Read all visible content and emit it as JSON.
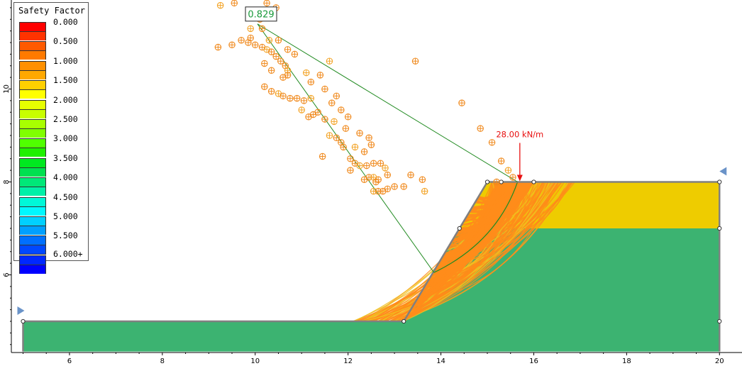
{
  "legend": {
    "title": "Safety Factor",
    "entries": [
      {
        "label": "0.000",
        "color": "#ff0000",
        "color2": "#ff3300"
      },
      {
        "label": "0.500",
        "color": "#ff5a00",
        "color2": "#ff7a00"
      },
      {
        "label": "1.000",
        "color": "#ff9000",
        "color2": "#ffa800"
      },
      {
        "label": "1.500",
        "color": "#ffd000",
        "color2": "#ffff00"
      },
      {
        "label": "2.000",
        "color": "#e6ff00",
        "color2": "#c8ff00"
      },
      {
        "label": "2.500",
        "color": "#a8ff00",
        "color2": "#80ff00"
      },
      {
        "label": "3.000",
        "color": "#50ff00",
        "color2": "#20f000"
      },
      {
        "label": "3.500",
        "color": "#00e820",
        "color2": "#00e050"
      },
      {
        "label": "4.000",
        "color": "#00e878",
        "color2": "#00f0a8"
      },
      {
        "label": "4.500",
        "color": "#00f8d8",
        "color2": "#00f8ff"
      },
      {
        "label": "5.000",
        "color": "#00d0ff",
        "color2": "#00a0ff"
      },
      {
        "label": "5.500",
        "color": "#0070ff",
        "color2": "#0048ff"
      },
      {
        "label": "",
        "color": "#0028ff",
        "color2": "#0000ff"
      }
    ],
    "last_label": "6.000+"
  },
  "min_safety_factor": "0.829",
  "load_label": "28.00 kN/m",
  "axes": {
    "x_ticks": [
      "6",
      "8",
      "10",
      "12",
      "14",
      "16",
      "18",
      "20"
    ],
    "y_ticks": [
      "6",
      "8",
      "10"
    ]
  },
  "colors": {
    "upper_layer": "#eecc00",
    "lower_layer": "#3cb371",
    "slip_orange": "#ff8c1a",
    "slip_yellow": "#f0c020",
    "center_marker": "#f08a1e",
    "radius_line": "#228b22",
    "load_arrow": "#e81010",
    "boundary": "#808080"
  },
  "chart_data": {
    "type": "scatter",
    "title": "",
    "xlabel": "",
    "ylabel": "",
    "xlim": [
      4.9,
      20.5
    ],
    "ylim": [
      4.35,
      11.85
    ],
    "min_factor_center": [
      10.05,
      11.4
    ],
    "min_factor_value": 0.829,
    "slope_profile": [
      [
        5.0,
        5.0
      ],
      [
        13.2,
        5.0
      ],
      [
        15.0,
        8.0
      ],
      [
        20.0,
        8.0
      ]
    ],
    "layer_interface_y": 7.0,
    "load": {
      "x": 15.7,
      "y": 8.0,
      "magnitude": "28.00 kN/m"
    },
    "critical_surface_entry": [
      13.85,
      6.05
    ],
    "critical_surface_exit": [
      15.65,
      8.0
    ],
    "slip_centers": [
      [
        9.25,
        11.8
      ],
      [
        9.55,
        11.85
      ],
      [
        10.25,
        11.85
      ],
      [
        10.45,
        11.75
      ],
      [
        10.1,
        11.5
      ],
      [
        9.9,
        11.3
      ],
      [
        10.15,
        11.3
      ],
      [
        9.7,
        11.05
      ],
      [
        9.9,
        11.1
      ],
      [
        10.5,
        11.05
      ],
      [
        10.3,
        11.05
      ],
      [
        9.2,
        10.9
      ],
      [
        9.5,
        10.95
      ],
      [
        10.7,
        10.85
      ],
      [
        10.85,
        10.75
      ],
      [
        11.6,
        10.6
      ],
      [
        13.45,
        10.6
      ],
      [
        9.85,
        11.0
      ],
      [
        10.0,
        10.95
      ],
      [
        10.15,
        10.9
      ],
      [
        10.25,
        10.85
      ],
      [
        10.35,
        10.8
      ],
      [
        10.45,
        10.7
      ],
      [
        10.55,
        10.6
      ],
      [
        10.65,
        10.5
      ],
      [
        10.7,
        10.4
      ],
      [
        10.7,
        10.3
      ],
      [
        10.2,
        10.55
      ],
      [
        10.35,
        10.4
      ],
      [
        10.6,
        10.25
      ],
      [
        11.1,
        10.35
      ],
      [
        11.4,
        10.3
      ],
      [
        11.2,
        10.15
      ],
      [
        10.2,
        10.05
      ],
      [
        10.35,
        9.95
      ],
      [
        10.5,
        9.9
      ],
      [
        10.6,
        9.85
      ],
      [
        10.75,
        9.8
      ],
      [
        10.9,
        9.8
      ],
      [
        11.05,
        9.75
      ],
      [
        11.2,
        9.8
      ],
      [
        11.5,
        10.0
      ],
      [
        11.65,
        9.7
      ],
      [
        11.75,
        9.85
      ],
      [
        11.85,
        9.55
      ],
      [
        11.0,
        9.55
      ],
      [
        11.15,
        9.4
      ],
      [
        11.25,
        9.45
      ],
      [
        11.35,
        9.5
      ],
      [
        11.5,
        9.35
      ],
      [
        11.7,
        9.3
      ],
      [
        12.0,
        9.4
      ],
      [
        11.95,
        9.15
      ],
      [
        12.25,
        9.05
      ],
      [
        12.45,
        8.95
      ],
      [
        11.6,
        9.0
      ],
      [
        11.75,
        8.95
      ],
      [
        11.85,
        8.85
      ],
      [
        11.9,
        8.75
      ],
      [
        11.45,
        8.55
      ],
      [
        12.15,
        8.75
      ],
      [
        12.35,
        8.65
      ],
      [
        12.5,
        8.8
      ],
      [
        12.05,
        8.5
      ],
      [
        12.15,
        8.4
      ],
      [
        12.25,
        8.35
      ],
      [
        12.4,
        8.35
      ],
      [
        12.55,
        8.4
      ],
      [
        12.05,
        8.25
      ],
      [
        12.7,
        8.4
      ],
      [
        12.8,
        8.3
      ],
      [
        12.85,
        8.15
      ],
      [
        12.65,
        8.05
      ],
      [
        12.35,
        8.05
      ],
      [
        12.45,
        8.1
      ],
      [
        12.55,
        8.1
      ],
      [
        12.6,
        8.0
      ],
      [
        13.35,
        8.15
      ],
      [
        13.6,
        8.05
      ],
      [
        13.0,
        7.9
      ],
      [
        12.55,
        7.8
      ],
      [
        12.65,
        7.8
      ],
      [
        12.75,
        7.8
      ],
      [
        12.85,
        7.85
      ],
      [
        13.2,
        7.9
      ],
      [
        13.65,
        7.8
      ],
      [
        14.45,
        9.7
      ],
      [
        14.85,
        9.15
      ],
      [
        15.1,
        8.85
      ],
      [
        15.3,
        8.45
      ],
      [
        15.45,
        8.25
      ],
      [
        15.55,
        8.1
      ],
      [
        15.2,
        8.0
      ]
    ]
  }
}
